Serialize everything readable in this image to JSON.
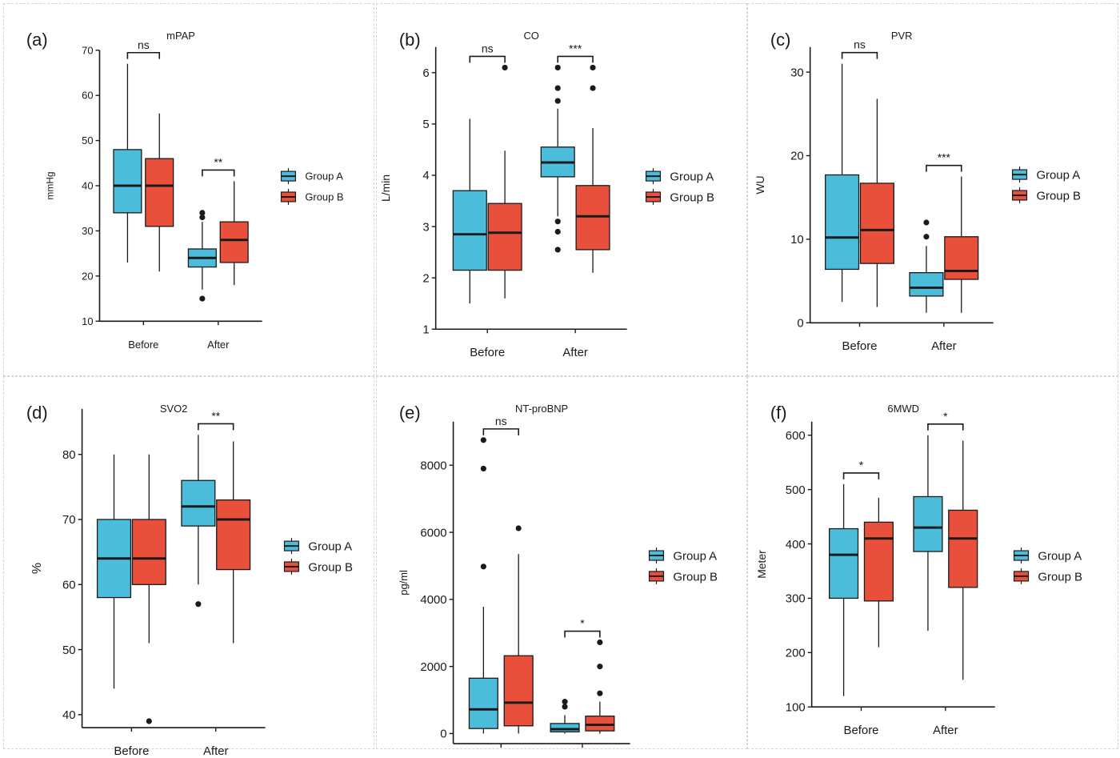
{
  "colors": {
    "group_a": "#4bbcd9",
    "group_b": "#e8503c",
    "line": "#1a1a1a",
    "frame": "#d6d6d6"
  },
  "chart_data": [
    {
      "type": "boxplot",
      "letter": "(a)",
      "title": "mPAP",
      "ylabel": "mmHg",
      "ylim": [
        10,
        70
      ],
      "yticks": [
        10,
        20,
        30,
        40,
        50,
        60,
        70
      ],
      "categories": [
        "Before",
        "After"
      ],
      "legend": [
        "Group A",
        "Group B"
      ],
      "series": [
        {
          "name": "Group A",
          "boxes": [
            {
              "min": 23,
              "q1": 34,
              "median": 40,
              "q3": 48,
              "max": 67,
              "outliers": []
            },
            {
              "min": 17,
              "q1": 22,
              "median": 24,
              "q3": 26,
              "max": 32,
              "outliers": [
                15,
                33,
                34
              ]
            }
          ]
        },
        {
          "name": "Group B",
          "boxes": [
            {
              "min": 21,
              "q1": 31,
              "median": 40,
              "q3": 46,
              "max": 56,
              "outliers": []
            },
            {
              "min": 18,
              "q1": 23,
              "median": 28,
              "q3": 32,
              "max": 41,
              "outliers": []
            }
          ]
        }
      ],
      "significance": [
        "ns",
        "**"
      ]
    },
    {
      "type": "boxplot",
      "letter": "(b)",
      "title": "CO",
      "ylabel": "L/min",
      "ylim": [
        1,
        6.5
      ],
      "yticks": [
        1,
        2,
        3,
        4,
        5,
        6
      ],
      "categories": [
        "Before",
        "After"
      ],
      "legend": [
        "Group A",
        "Group B"
      ],
      "series": [
        {
          "name": "Group A",
          "boxes": [
            {
              "min": 1.5,
              "q1": 2.15,
              "median": 2.85,
              "q3": 3.7,
              "max": 5.1,
              "outliers": []
            },
            {
              "min": 3.2,
              "q1": 3.97,
              "median": 4.25,
              "q3": 4.55,
              "max": 5.3,
              "outliers": [
                2.55,
                2.9,
                3.1,
                5.45,
                5.7,
                6.1
              ]
            }
          ]
        },
        {
          "name": "Group B",
          "boxes": [
            {
              "min": 1.6,
              "q1": 2.15,
              "median": 2.88,
              "q3": 3.45,
              "max": 4.48,
              "outliers": [
                6.1
              ]
            },
            {
              "min": 2.1,
              "q1": 2.55,
              "median": 3.2,
              "q3": 3.8,
              "max": 4.92,
              "outliers": [
                5.7,
                6.1
              ]
            }
          ]
        }
      ],
      "significance": [
        "ns",
        "***"
      ]
    },
    {
      "type": "boxplot",
      "letter": "(c)",
      "title": "PVR",
      "ylabel": "WU",
      "ylim": [
        0,
        33
      ],
      "yticks": [
        0,
        10,
        20,
        30
      ],
      "categories": [
        "Before",
        "After"
      ],
      "legend": [
        "Group A",
        "Group B"
      ],
      "series": [
        {
          "name": "Group A",
          "boxes": [
            {
              "min": 2.5,
              "q1": 6.4,
              "median": 10.2,
              "q3": 17.7,
              "max": 31,
              "outliers": []
            },
            {
              "min": 1.2,
              "q1": 3.2,
              "median": 4.2,
              "q3": 6.0,
              "max": 9.2,
              "outliers": [
                10.3,
                12
              ]
            }
          ]
        },
        {
          "name": "Group B",
          "boxes": [
            {
              "min": 1.9,
              "q1": 7.1,
              "median": 11.1,
              "q3": 16.7,
              "max": 26.8,
              "outliers": []
            },
            {
              "min": 1.2,
              "q1": 5.2,
              "median": 6.2,
              "q3": 10.3,
              "max": 17.5,
              "outliers": []
            }
          ]
        }
      ],
      "significance": [
        "ns",
        "***"
      ]
    },
    {
      "type": "boxplot",
      "letter": "(d)",
      "title": "SVO2",
      "ylabel": "%",
      "ylim": [
        38,
        87
      ],
      "yticks": [
        40,
        50,
        60,
        70,
        80
      ],
      "categories": [
        "Before",
        "After"
      ],
      "legend": [
        "Group A",
        "Group B"
      ],
      "series": [
        {
          "name": "Group A",
          "boxes": [
            {
              "min": 44,
              "q1": 58,
              "median": 64,
              "q3": 70,
              "max": 80,
              "outliers": []
            },
            {
              "min": 60,
              "q1": 69,
              "median": 72,
              "q3": 76,
              "max": 83,
              "outliers": [
                57
              ]
            }
          ]
        },
        {
          "name": "Group B",
          "boxes": [
            {
              "min": 51,
              "q1": 60,
              "median": 64,
              "q3": 70,
              "max": 80,
              "outliers": [
                39
              ]
            },
            {
              "min": 51,
              "q1": 62.3,
              "median": 70,
              "q3": 73,
              "max": 82,
              "outliers": []
            }
          ]
        }
      ],
      "significance": [
        "",
        "**"
      ]
    },
    {
      "type": "boxplot",
      "letter": "(e)",
      "title": "NT-proBNP",
      "ylabel": "pg/ml",
      "ylim": [
        -300,
        9300
      ],
      "yticks": [
        0,
        2000,
        4000,
        6000,
        8000
      ],
      "categories": [
        "Before",
        "After"
      ],
      "legend": [
        "Group A",
        "Group B"
      ],
      "series": [
        {
          "name": "Group A",
          "boxes": [
            {
              "min": 0,
              "q1": 150,
              "median": 720,
              "q3": 1650,
              "max": 3780,
              "outliers": [
                4980,
                7900,
                8750
              ]
            },
            {
              "min": 0,
              "q1": 50,
              "median": 130,
              "q3": 300,
              "max": 550,
              "outliers": [
                800,
                950
              ]
            }
          ]
        },
        {
          "name": "Group B",
          "boxes": [
            {
              "min": 0,
              "q1": 230,
              "median": 920,
              "q3": 2320,
              "max": 5350,
              "outliers": [
                6120
              ]
            },
            {
              "min": 0,
              "q1": 80,
              "median": 260,
              "q3": 520,
              "max": 950,
              "outliers": [
                1200,
                2000,
                2720
              ]
            }
          ]
        }
      ],
      "significance": [
        "ns",
        "*"
      ]
    },
    {
      "type": "boxplot",
      "letter": "(f)",
      "title": "6MWD",
      "ylabel": "Meter",
      "ylim": [
        100,
        625
      ],
      "yticks": [
        100,
        200,
        300,
        400,
        500,
        600
      ],
      "categories": [
        "Before",
        "After"
      ],
      "legend": [
        "Group A",
        "Group B"
      ],
      "series": [
        {
          "name": "Group A",
          "boxes": [
            {
              "min": 120,
              "q1": 300,
              "median": 380,
              "q3": 428,
              "max": 510,
              "outliers": []
            },
            {
              "min": 240,
              "q1": 386,
              "median": 430,
              "q3": 487,
              "max": 600,
              "outliers": []
            }
          ]
        },
        {
          "name": "Group B",
          "boxes": [
            {
              "min": 210,
              "q1": 295,
              "median": 410,
              "q3": 440,
              "max": 485,
              "outliers": []
            },
            {
              "min": 150,
              "q1": 320,
              "median": 410,
              "q3": 462,
              "max": 590,
              "outliers": []
            }
          ]
        }
      ],
      "significance": [
        "*",
        "*"
      ]
    }
  ]
}
